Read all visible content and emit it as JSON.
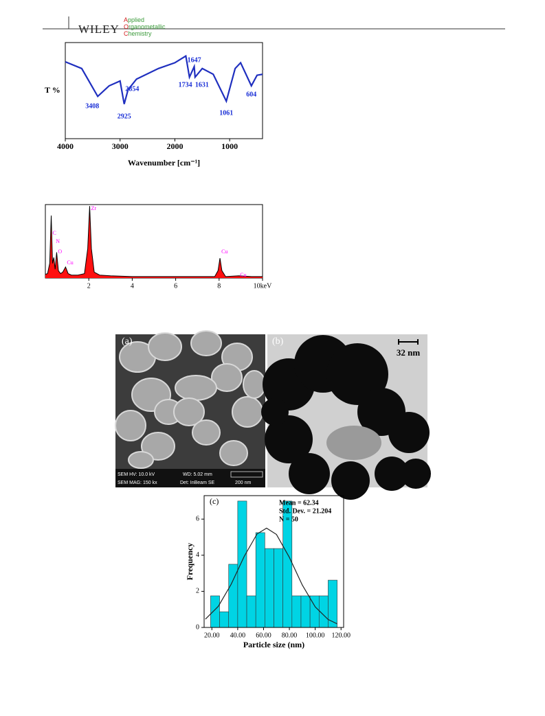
{
  "header": {
    "publisher": "WILEY",
    "journal": [
      "Applied",
      "Organometallic",
      "Chemistry"
    ]
  },
  "chart_data": [
    {
      "type": "line",
      "y_label": "T %",
      "x_label": "Wavenumber [cm⁻¹]",
      "x": [
        4000,
        3700,
        3408,
        3200,
        3000,
        2925,
        2854,
        2700,
        2300,
        2000,
        1800,
        1734,
        1647,
        1631,
        1500,
        1300,
        1061,
        900,
        800,
        604,
        500,
        400
      ],
      "values": [
        80,
        73,
        44,
        55,
        60,
        36,
        51,
        62,
        73,
        79,
        86,
        64,
        75,
        64,
        73,
        67,
        39,
        73,
        79,
        55,
        66,
        67
      ],
      "color": "#1f2fbf",
      "xlim": [
        4000,
        400
      ],
      "ylim": [
        0,
        100
      ],
      "xticks": [
        4000,
        3000,
        2000,
        1000
      ],
      "peak_labels": [
        3408,
        2925,
        2854,
        1734,
        1647,
        1631,
        1061,
        604
      ],
      "label_color": "#1a2fd6"
    },
    {
      "type": "area",
      "x": [
        0,
        0.1,
        0.2,
        0.27,
        0.33,
        0.39,
        0.45,
        0.52,
        0.6,
        0.7,
        0.8,
        0.93,
        1.05,
        1.2,
        1.5,
        1.8,
        1.95,
        2.04,
        2.12,
        2.25,
        2.5,
        3,
        4,
        5,
        6,
        7,
        7.8,
        7.95,
        8.04,
        8.13,
        8.3,
        8.9,
        9.5,
        10
      ],
      "values": [
        5,
        6,
        20,
        85,
        20,
        28,
        12,
        35,
        10,
        6,
        8,
        15,
        6,
        4,
        4,
        6,
        40,
        98,
        40,
        8,
        4,
        3,
        2,
        2,
        2,
        2,
        2,
        10,
        27,
        10,
        2,
        3,
        2,
        2
      ],
      "color": "#ff1010",
      "line_color": "#000000",
      "xlim": [
        0,
        10
      ],
      "ylim": [
        0,
        100
      ],
      "xticks": [
        2,
        4,
        6,
        8,
        {
          "value": 10,
          "label": "10keV"
        }
      ],
      "peaks": [
        {
          "label": "C",
          "x": 0.27
        },
        {
          "label": "N",
          "x": 0.42
        },
        {
          "label": "O",
          "x": 0.52
        },
        {
          "label": "Cu",
          "x": 0.93
        },
        {
          "label": "Zr",
          "x": 2.04
        },
        {
          "label": "Cu",
          "x": 8.04
        },
        {
          "label": "Cu",
          "x": 8.9
        }
      ],
      "label_color": "#ff00ff"
    },
    {
      "type": "histogram",
      "panel": "(c)",
      "x_label": "Particle size (nm)",
      "y_label": "Frequency",
      "bins": [
        19,
        26,
        33,
        40,
        47,
        54,
        61,
        68,
        75,
        82,
        89,
        96,
        103,
        110,
        117
      ],
      "values": [
        1.75,
        0.87,
        3.5,
        7,
        1.75,
        5.25,
        4.37,
        4.37,
        7,
        1.75,
        1.75,
        1.75,
        1.75,
        2.62
      ],
      "color": "#00d4e4",
      "xlim": [
        14,
        122
      ],
      "ylim": [
        0,
        7.3
      ],
      "xticks": [
        {
          "value": 20,
          "label": "20.00"
        },
        {
          "value": 40,
          "label": "40.00"
        },
        {
          "value": 60,
          "label": "60.00"
        },
        {
          "value": 80,
          "label": "80.00"
        },
        {
          "value": 100,
          "label": "100.00"
        },
        {
          "value": 120,
          "label": "120.00"
        }
      ],
      "yticks": [
        0,
        2,
        4,
        6
      ],
      "fit": {
        "x": [
          15,
          25,
          35,
          45,
          55,
          62.34,
          70,
          80,
          90,
          100,
          110,
          117
        ],
        "values": [
          0.46,
          1.17,
          2.4,
          3.93,
          5.18,
          5.5,
          5.15,
          3.88,
          2.35,
          1.14,
          0.44,
          0.2
        ]
      },
      "stats": [
        "Mean = 62.34",
        "Std. Dev. = 21.204",
        "N = 50"
      ]
    }
  ],
  "images": {
    "sem": {
      "panel": "(a)",
      "info": [
        "SEM HV: 10.0 kV",
        "WD: 5.02 mm",
        "SEM MAG: 150 kx",
        "Det: InBeam SE",
        "200 nm"
      ]
    },
    "tem": {
      "panel": "(b)",
      "scale": "32 nm"
    }
  }
}
